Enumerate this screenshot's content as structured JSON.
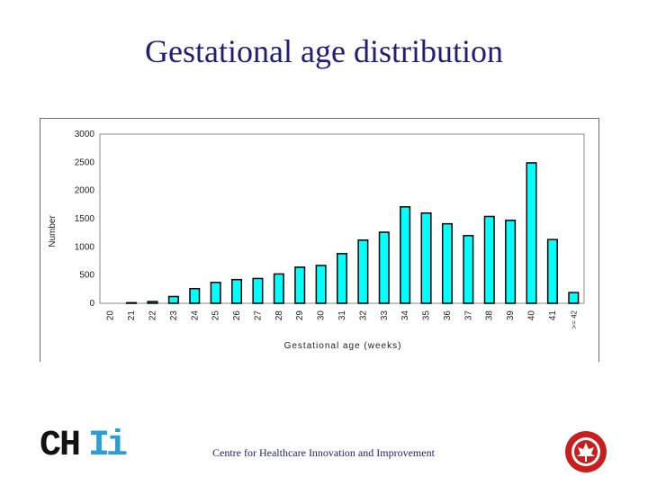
{
  "slide": {
    "title": "Gestational age distribution",
    "footer": "Centre for Healthcare Innovation and Improvement",
    "logo": {
      "left_text": "CH",
      "right_text": "Ii"
    },
    "seal_label": "seal-emblem"
  },
  "colors": {
    "bar_fill": "#00ffff",
    "bar_stroke": "#000000",
    "title": "#1f1f7a",
    "logo_accent": "#2a9fd6",
    "seal_red": "#c81e1e"
  },
  "chart_data": {
    "type": "bar",
    "title": "",
    "xlabel": "Gestational age (weeks)",
    "ylabel": "Number",
    "ylim": [
      0,
      3000
    ],
    "yticks": [
      0,
      500,
      1000,
      1500,
      2000,
      2500,
      3000
    ],
    "categories": [
      "20",
      "21",
      "22",
      "23",
      "24",
      "25",
      "26",
      "27",
      "28",
      "29",
      "30",
      "31",
      "32",
      "33",
      "34",
      "35",
      "36",
      "37",
      "38",
      "39",
      "40",
      "41",
      ">= 42"
    ],
    "values": [
      0,
      10,
      30,
      120,
      260,
      370,
      420,
      440,
      520,
      640,
      670,
      880,
      1120,
      1260,
      1710,
      1600,
      1410,
      1200,
      1540,
      1470,
      2490,
      1130,
      190
    ],
    "grid": false,
    "legend": "none"
  }
}
